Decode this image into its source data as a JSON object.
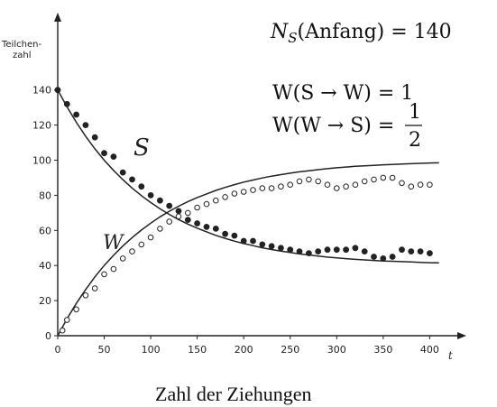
{
  "chart_data": {
    "type": "scatter",
    "title": "",
    "ylabel_line1": "Teilchen-",
    "ylabel_line2": "zahl",
    "x_axis_symbol": "t",
    "xlabel": "Zahl der Ziehungen",
    "xlim": [
      0,
      420
    ],
    "ylim": [
      0,
      145
    ],
    "x_ticks": [
      0,
      50,
      100,
      150,
      200,
      250,
      300,
      350,
      400
    ],
    "y_ticks": [
      0,
      20,
      40,
      60,
      80,
      100,
      120,
      140
    ],
    "grid": false,
    "series": [
      {
        "name": "S",
        "marker": "filled",
        "points": [
          [
            0,
            140
          ],
          [
            10,
            132
          ],
          [
            20,
            126
          ],
          [
            30,
            120
          ],
          [
            40,
            113
          ],
          [
            50,
            104
          ],
          [
            60,
            102
          ],
          [
            70,
            93
          ],
          [
            80,
            89
          ],
          [
            90,
            85
          ],
          [
            100,
            80
          ],
          [
            110,
            77
          ],
          [
            120,
            74
          ],
          [
            130,
            71
          ],
          [
            140,
            66
          ],
          [
            150,
            64
          ],
          [
            160,
            62
          ],
          [
            170,
            61
          ],
          [
            180,
            58
          ],
          [
            190,
            57
          ],
          [
            200,
            54
          ],
          [
            210,
            54
          ],
          [
            220,
            52
          ],
          [
            230,
            51
          ],
          [
            240,
            50
          ],
          [
            250,
            49
          ],
          [
            260,
            48
          ],
          [
            270,
            47
          ],
          [
            280,
            48
          ],
          [
            290,
            49
          ],
          [
            300,
            49
          ],
          [
            310,
            49
          ],
          [
            320,
            50
          ],
          [
            330,
            48
          ],
          [
            340,
            45
          ],
          [
            350,
            44
          ],
          [
            360,
            45
          ],
          [
            370,
            49
          ],
          [
            380,
            48
          ],
          [
            390,
            48
          ],
          [
            400,
            47
          ]
        ],
        "fit": [
          [
            0,
            140
          ],
          [
            10,
            130.4
          ],
          [
            20,
            121.6
          ],
          [
            30,
            113.7
          ],
          [
            40,
            106.5
          ],
          [
            50,
            100.0
          ],
          [
            60,
            94.2
          ],
          [
            70,
            88.9
          ],
          [
            80,
            84.1
          ],
          [
            90,
            79.8
          ],
          [
            100,
            75.9
          ],
          [
            110,
            72.3
          ],
          [
            120,
            69.1
          ],
          [
            130,
            66.2
          ],
          [
            140,
            63.6
          ],
          [
            150,
            61.3
          ],
          [
            160,
            59.2
          ],
          [
            170,
            57.2
          ],
          [
            180,
            55.5
          ],
          [
            190,
            53.9
          ],
          [
            200,
            52.5
          ],
          [
            210,
            51.3
          ],
          [
            220,
            50.1
          ],
          [
            230,
            49.1
          ],
          [
            240,
            48.2
          ],
          [
            250,
            47.4
          ],
          [
            260,
            46.6
          ],
          [
            270,
            46.0
          ],
          [
            280,
            45.4
          ],
          [
            290,
            44.8
          ],
          [
            300,
            44.3
          ],
          [
            310,
            43.9
          ],
          [
            320,
            43.5
          ],
          [
            330,
            43.2
          ],
          [
            340,
            42.9
          ],
          [
            350,
            42.6
          ],
          [
            360,
            42.4
          ],
          [
            370,
            42.2
          ],
          [
            380,
            42.0
          ],
          [
            390,
            41.8
          ],
          [
            400,
            41.6
          ],
          [
            410,
            41.5
          ]
        ]
      },
      {
        "name": "W",
        "marker": "open",
        "points": [
          [
            5,
            3
          ],
          [
            10,
            9
          ],
          [
            20,
            15
          ],
          [
            30,
            23
          ],
          [
            40,
            27
          ],
          [
            50,
            35
          ],
          [
            60,
            38
          ],
          [
            70,
            44
          ],
          [
            80,
            48
          ],
          [
            90,
            52
          ],
          [
            100,
            56
          ],
          [
            110,
            61
          ],
          [
            120,
            65
          ],
          [
            130,
            68
          ],
          [
            140,
            70
          ],
          [
            150,
            73
          ],
          [
            160,
            75
          ],
          [
            170,
            77
          ],
          [
            180,
            79
          ],
          [
            190,
            81
          ],
          [
            200,
            82
          ],
          [
            210,
            83
          ],
          [
            220,
            84
          ],
          [
            230,
            84
          ],
          [
            240,
            85
          ],
          [
            250,
            86
          ],
          [
            260,
            88
          ],
          [
            270,
            89
          ],
          [
            280,
            88
          ],
          [
            290,
            86
          ],
          [
            300,
            84
          ],
          [
            310,
            85
          ],
          [
            320,
            86
          ],
          [
            330,
            88
          ],
          [
            340,
            89
          ],
          [
            350,
            90
          ],
          [
            360,
            90
          ],
          [
            370,
            87
          ],
          [
            380,
            85
          ],
          [
            390,
            86
          ],
          [
            400,
            86
          ]
        ],
        "fit": [
          [
            0,
            0
          ],
          [
            10,
            9.6
          ],
          [
            20,
            18.4
          ],
          [
            30,
            26.3
          ],
          [
            40,
            33.5
          ],
          [
            50,
            40.0
          ],
          [
            60,
            45.8
          ],
          [
            70,
            51.1
          ],
          [
            80,
            55.9
          ],
          [
            90,
            60.2
          ],
          [
            100,
            64.1
          ],
          [
            110,
            67.7
          ],
          [
            120,
            70.9
          ],
          [
            130,
            73.8
          ],
          [
            140,
            76.4
          ],
          [
            150,
            78.7
          ],
          [
            160,
            80.8
          ],
          [
            170,
            82.8
          ],
          [
            180,
            84.5
          ],
          [
            190,
            86.1
          ],
          [
            200,
            87.5
          ],
          [
            210,
            88.7
          ],
          [
            220,
            89.9
          ],
          [
            230,
            90.9
          ],
          [
            240,
            91.8
          ],
          [
            250,
            92.6
          ],
          [
            260,
            93.4
          ],
          [
            270,
            94.0
          ],
          [
            280,
            94.6
          ],
          [
            290,
            95.2
          ],
          [
            300,
            95.7
          ],
          [
            310,
            96.1
          ],
          [
            320,
            96.5
          ],
          [
            330,
            96.8
          ],
          [
            340,
            97.1
          ],
          [
            350,
            97.4
          ],
          [
            360,
            97.6
          ],
          [
            370,
            97.8
          ],
          [
            380,
            98.0
          ],
          [
            390,
            98.2
          ],
          [
            400,
            98.4
          ],
          [
            410,
            98.5
          ]
        ]
      }
    ],
    "annotations": {
      "n_prefix": "N",
      "n_sub": "S",
      "n_paren": "(Anfang) = 140",
      "w1": "W(S → W) = 1",
      "w2_left": "W(W → S) =",
      "w2_num": "1",
      "w2_den": "2"
    }
  }
}
